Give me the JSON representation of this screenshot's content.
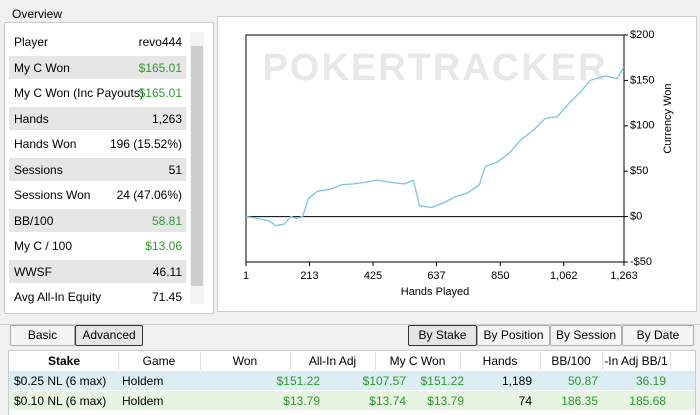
{
  "overview": {
    "title": "Overview",
    "rows": [
      {
        "label": "Player",
        "value": "revo444",
        "color": "#000000",
        "shaded": false
      },
      {
        "label": "My C Won",
        "value": "$165.01",
        "color": "#2e9a2e",
        "shaded": true
      },
      {
        "label": "My C Won (Inc Payouts)",
        "value": "$165.01",
        "color": "#2e9a2e",
        "shaded": false
      },
      {
        "label": "Hands",
        "value": "1,263",
        "color": "#000000",
        "shaded": true
      },
      {
        "label": "Hands Won",
        "value": "196 (15.52%)",
        "color": "#000000",
        "shaded": false
      },
      {
        "label": "Sessions",
        "value": "51",
        "color": "#000000",
        "shaded": true
      },
      {
        "label": "Sessions Won",
        "value": "24 (47.06%)",
        "color": "#000000",
        "shaded": false
      },
      {
        "label": "BB/100",
        "value": "58.81",
        "color": "#2e9a2e",
        "shaded": true
      },
      {
        "label": "My C / 100",
        "value": "$13.06",
        "color": "#2e9a2e",
        "shaded": false
      },
      {
        "label": "WWSF",
        "value": "46.11",
        "color": "#000000",
        "shaded": true
      },
      {
        "label": "Avg All-In Equity",
        "value": "71.45",
        "color": "#000000",
        "shaded": false
      }
    ]
  },
  "graph": {
    "type": "line",
    "watermark": "POKERTRACKER",
    "x_label": "Hands Played",
    "y_label": "Currency Won",
    "xlim": [
      1,
      1263
    ],
    "xticks": [
      1,
      213,
      425,
      637,
      850,
      {
        "value": 1062,
        "label": "1,062"
      },
      {
        "value": 1263,
        "label": "1,263"
      }
    ],
    "ylim": [
      -50,
      200
    ],
    "yticks": [
      {
        "value": -50,
        "label": "-$50"
      },
      {
        "value": 0,
        "label": "$0"
      },
      {
        "value": 50,
        "label": "$50"
      },
      {
        "value": 100,
        "label": "$100"
      },
      {
        "value": 150,
        "label": "$150"
      },
      {
        "value": 200,
        "label": "$200"
      }
    ],
    "series": [
      {
        "color": "#7ec4e0",
        "x": [
          1,
          40,
          80,
          100,
          130,
          150,
          170,
          190,
          210,
          240,
          280,
          320,
          360,
          400,
          440,
          480,
          530,
          560,
          580,
          620,
          660,
          700,
          740,
          780,
          800,
          840,
          880,
          920,
          960,
          1000,
          1040,
          1080,
          1120,
          1150,
          1200,
          1240,
          1263
        ],
        "values": [
          0,
          -2,
          -5,
          -10,
          -8,
          0,
          -2,
          0,
          20,
          28,
          30,
          35,
          36,
          38,
          40,
          38,
          36,
          40,
          12,
          10,
          15,
          22,
          26,
          35,
          55,
          60,
          70,
          85,
          95,
          108,
          110,
          125,
          138,
          150,
          155,
          152,
          165
        ]
      }
    ]
  },
  "tabs_left": {
    "items": [
      "Basic",
      "Advanced"
    ],
    "selected": 1
  },
  "tabs_right": {
    "items": [
      "By Stake",
      "By Position",
      "By Session",
      "By Date"
    ],
    "selected": 0
  },
  "table": {
    "header": [
      "Stake",
      "Game",
      "Won",
      "All-In Adj",
      "My C Won",
      "Hands",
      "BB/100",
      "-In Adj BB/1"
    ],
    "rows": [
      [
        "$0.25 NL (6 max)",
        "Holdem",
        "$151.22",
        "$107.57",
        "$151.22",
        "1,189",
        "50.87",
        "36.19"
      ],
      [
        "$0.10 NL (6 max)",
        "Holdem",
        "$13.79",
        "$13.74",
        "$13.79",
        "74",
        "186.35",
        "185.68"
      ]
    ],
    "row_colors": [
      "#dcedf4",
      "#e8f4e2"
    ],
    "column_colors": [
      "#000000",
      "#000000",
      "#2e9a2e",
      "#2e9a2e",
      "#2e9a2e",
      "#000000",
      "#2e9a2e",
      "#2e9a2e"
    ]
  }
}
